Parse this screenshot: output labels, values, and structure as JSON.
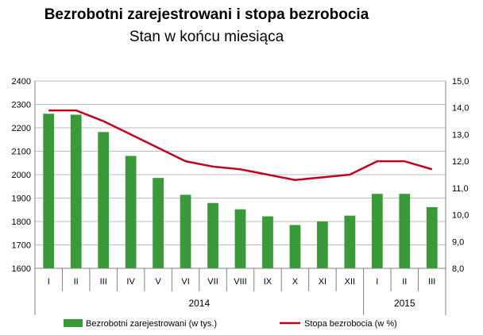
{
  "chart_data": {
    "type": "bar",
    "title": "Bezrobotni zarejestrowani i stopa bezrobocia",
    "subtitle": "Stan w końcu miesiąca",
    "categories": [
      "I",
      "II",
      "III",
      "IV",
      "V",
      "VI",
      "VII",
      "VIII",
      "IX",
      "X",
      "XI",
      "XII",
      "I",
      "II",
      "III"
    ],
    "year_groups": [
      {
        "label": "2014",
        "count": 12
      },
      {
        "label": "2015",
        "count": 3
      }
    ],
    "left_axis": {
      "ylim": [
        1600,
        2400
      ],
      "ticks": [
        "1600",
        "1700",
        "1800",
        "1900",
        "2000",
        "2100",
        "2200",
        "2300",
        "2400"
      ]
    },
    "right_axis": {
      "ylim": [
        8.0,
        15.0
      ],
      "ticks": [
        "8,0",
        "9,0",
        "10,0",
        "11,0",
        "12,0",
        "13,0",
        "14,0",
        "15,0"
      ]
    },
    "grid": true,
    "legend_position": "bottom",
    "series": [
      {
        "name": "Bezrobotni zarejestrowani  (w tys.)",
        "type": "bar",
        "axis": "left",
        "color": "#3a9a3a",
        "values": [
          2260,
          2256,
          2182,
          2080,
          1986,
          1914,
          1879,
          1852,
          1822,
          1785,
          1800,
          1825,
          1918,
          1918,
          1861
        ]
      },
      {
        "name": "Stopa bezrobocia  (w %)",
        "type": "line",
        "axis": "right",
        "color": "#c0001f",
        "values": [
          13.9,
          13.9,
          13.5,
          13.0,
          12.5,
          12.0,
          11.8,
          11.7,
          11.5,
          11.3,
          11.4,
          11.5,
          12.0,
          12.0,
          11.7
        ]
      }
    ]
  }
}
